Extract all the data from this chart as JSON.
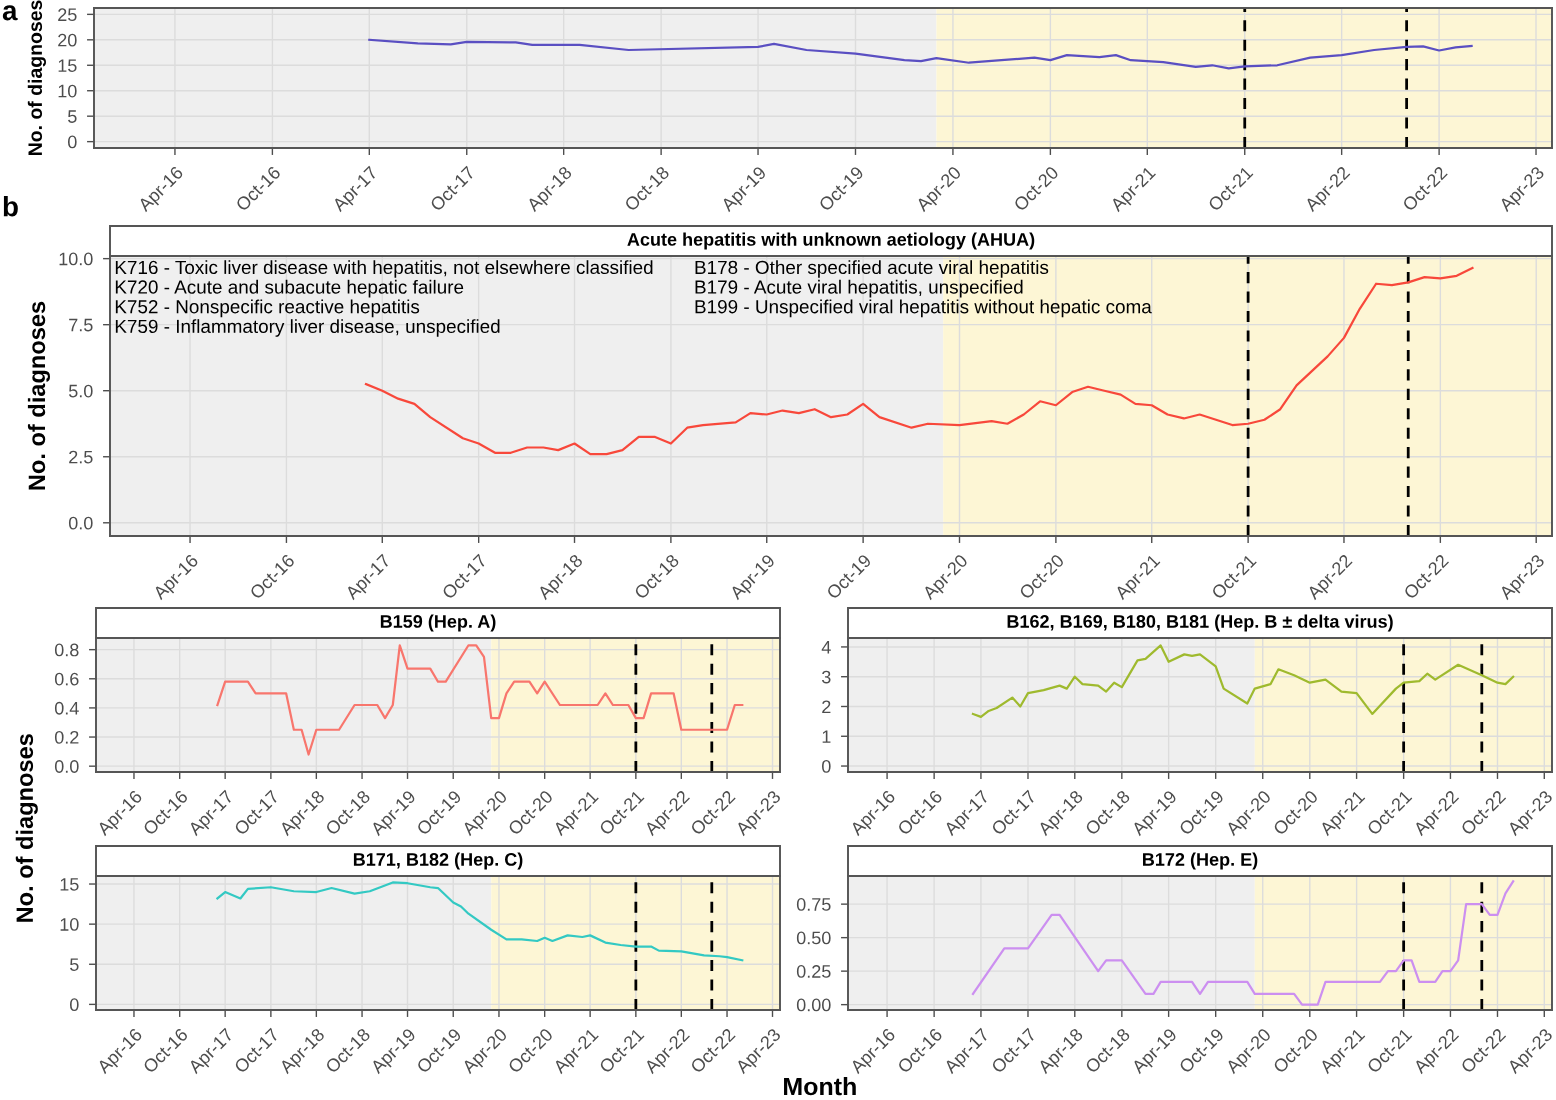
{
  "chart_data": [
    {
      "type": "line",
      "ylabel": "No. of diagnoses",
      "annotations": [
        "a"
      ],
      "grid": true,
      "line_style": "solid",
      "xlim": [
        "2015-11-01",
        "2023-05-01"
      ],
      "ylim": [
        -1.25,
        26.25
      ],
      "yticks": [
        0,
        5,
        10,
        15,
        20,
        25
      ],
      "xticks": [
        {
          "value": "2016-04-01",
          "label": "Apr-16"
        },
        {
          "value": "2016-10-01",
          "label": "Oct-16"
        },
        {
          "value": "2017-04-01",
          "label": "Apr-17"
        },
        {
          "value": "2017-10-01",
          "label": "Oct-17"
        },
        {
          "value": "2018-04-01",
          "label": "Apr-18"
        },
        {
          "value": "2018-10-01",
          "label": "Oct-18"
        },
        {
          "value": "2019-04-01",
          "label": "Apr-19"
        },
        {
          "value": "2019-10-01",
          "label": "Oct-19"
        },
        {
          "value": "2020-04-01",
          "label": "Apr-20"
        },
        {
          "value": "2020-10-01",
          "label": "Oct-20"
        },
        {
          "value": "2021-04-01",
          "label": "Apr-21"
        },
        {
          "value": "2021-10-01",
          "label": "Oct-21"
        },
        {
          "value": "2022-04-01",
          "label": "Apr-22"
        },
        {
          "value": "2022-10-01",
          "label": "Oct-22"
        },
        {
          "value": "2023-04-01",
          "label": "Apr-23"
        }
      ],
      "bands": [
        {
          "axis": "x",
          "from": "2015-11-01",
          "to": "2020-03-01",
          "color": "#efefef"
        },
        {
          "axis": "x",
          "from": "2020-03-01",
          "to": "2023-05-01",
          "color": "#fdf6d5"
        }
      ],
      "ref_lines": [
        {
          "axis": "x",
          "value": "2021-10-01",
          "color": "#000000",
          "line_style": "dashed"
        },
        {
          "axis": "x",
          "value": "2022-08-01",
          "color": "#000000",
          "line_style": "dashed"
        }
      ],
      "series": [
        {
          "color": "#5a4fc2",
          "x": [
            "2017-04",
            "2017-07",
            "2017-09",
            "2017-10",
            "2018-01",
            "2018-02",
            "2018-05",
            "2018-08",
            "2019-04",
            "2019-05",
            "2019-07",
            "2019-10",
            "2020-01",
            "2020-02",
            "2020-03",
            "2020-05",
            "2020-07",
            "2020-09",
            "2020-10",
            "2020-11",
            "2021-01",
            "2021-02",
            "2021-03",
            "2021-05",
            "2021-07",
            "2021-08",
            "2021-09",
            "2021-10",
            "2021-12",
            "2022-02",
            "2022-04",
            "2022-06",
            "2022-08",
            "2022-09",
            "2022-10",
            "2022-11",
            "2022-12"
          ],
          "values": [
            20.0,
            19.3,
            19.1,
            19.6,
            19.5,
            19.0,
            19.0,
            18.0,
            18.6,
            19.2,
            18.0,
            17.3,
            16.0,
            15.8,
            16.4,
            15.5,
            16.0,
            16.5,
            16.0,
            17.0,
            16.6,
            17.0,
            16.0,
            15.6,
            14.7,
            15.0,
            14.4,
            14.8,
            15.0,
            16.5,
            17.0,
            18.0,
            18.6,
            18.7,
            17.9,
            18.5,
            18.8
          ]
        }
      ]
    },
    {
      "type": "line",
      "title": "Acute hepatitis with unknown aetiology (AHUA)",
      "ylabel": "No. of diagnoses",
      "grid": true,
      "line_style": "solid",
      "annotations": [
        "b",
        "K716 - Toxic liver disease with hepatitis, not elsewhere classified\nK720 - Acute and subacute hepatic failure\nK752 - Nonspecific reactive hepatitis\nK759 - Inflammatory liver disease, unspecified",
        "B178 - Other specified acute viral hepatitis\nB179 - Acute viral hepatitis, unspecified\nB199 - Unspecified viral hepatitis without hepatic coma"
      ],
      "xlim": [
        "2015-11-01",
        "2023-05-01"
      ],
      "ylim": [
        -0.5,
        10.1
      ],
      "yticks": [
        {
          "value": 0,
          "label": "0.0"
        },
        {
          "value": 2.5,
          "label": "2.5"
        },
        {
          "value": 5,
          "label": "5.0"
        },
        {
          "value": 7.5,
          "label": "7.5"
        },
        {
          "value": 10,
          "label": "10.0"
        }
      ],
      "xticks": [
        {
          "value": "2016-04-01",
          "label": "Apr-16"
        },
        {
          "value": "2016-10-01",
          "label": "Oct-16"
        },
        {
          "value": "2017-04-01",
          "label": "Apr-17"
        },
        {
          "value": "2017-10-01",
          "label": "Oct-17"
        },
        {
          "value": "2018-04-01",
          "label": "Apr-18"
        },
        {
          "value": "2018-10-01",
          "label": "Oct-18"
        },
        {
          "value": "2019-04-01",
          "label": "Apr-19"
        },
        {
          "value": "2019-10-01",
          "label": "Oct-19"
        },
        {
          "value": "2020-04-01",
          "label": "Apr-20"
        },
        {
          "value": "2020-10-01",
          "label": "Oct-20"
        },
        {
          "value": "2021-04-01",
          "label": "Apr-21"
        },
        {
          "value": "2021-10-01",
          "label": "Oct-21"
        },
        {
          "value": "2022-04-01",
          "label": "Apr-22"
        },
        {
          "value": "2022-10-01",
          "label": "Oct-22"
        },
        {
          "value": "2023-04-01",
          "label": "Apr-23"
        }
      ],
      "bands": [
        {
          "axis": "x",
          "from": "2015-11-01",
          "to": "2020-03-01",
          "color": "#efefef"
        },
        {
          "axis": "x",
          "from": "2020-03-01",
          "to": "2023-05-01",
          "color": "#fdf6d5"
        }
      ],
      "ref_lines": [
        {
          "axis": "x",
          "value": "2021-10-01",
          "color": "#000000",
          "line_style": "dashed"
        },
        {
          "axis": "x",
          "value": "2022-08-01",
          "color": "#000000",
          "line_style": "dashed"
        }
      ],
      "series": [
        {
          "color": "#f8483b",
          "x": [
            "2017-03",
            "2017-04",
            "2017-05",
            "2017-06",
            "2017-07",
            "2017-09",
            "2017-10",
            "2017-11",
            "2017-12",
            "2018-01",
            "2018-02",
            "2018-03",
            "2018-04",
            "2018-05",
            "2018-06",
            "2018-07",
            "2018-08",
            "2018-09",
            "2018-10",
            "2018-11",
            "2018-12",
            "2019-02",
            "2019-03",
            "2019-04",
            "2019-05",
            "2019-06",
            "2019-07",
            "2019-08",
            "2019-09",
            "2019-10",
            "2019-11",
            "2020-01",
            "2020-02",
            "2020-04",
            "2020-06",
            "2020-07",
            "2020-08",
            "2020-09",
            "2020-10",
            "2020-11",
            "2020-12",
            "2021-01",
            "2021-02",
            "2021-03",
            "2021-04",
            "2021-05",
            "2021-06",
            "2021-07",
            "2021-09",
            "2021-10",
            "2021-11",
            "2021-12",
            "2022-01",
            "2022-03",
            "2022-04",
            "2022-05",
            "2022-06",
            "2022-07",
            "2022-08",
            "2022-09",
            "2022-10",
            "2022-11",
            "2022-12"
          ],
          "values": [
            5.25,
            5.0,
            4.7,
            4.5,
            4.0,
            3.2,
            3.0,
            2.65,
            2.65,
            2.85,
            2.85,
            2.75,
            3.0,
            2.6,
            2.6,
            2.75,
            3.25,
            3.25,
            3.0,
            3.6,
            3.7,
            3.8,
            4.15,
            4.1,
            4.25,
            4.15,
            4.3,
            4.0,
            4.1,
            4.5,
            4.0,
            3.6,
            3.75,
            3.7,
            3.85,
            3.75,
            4.1,
            4.6,
            4.45,
            4.95,
            5.15,
            5.0,
            4.85,
            4.5,
            4.45,
            4.1,
            3.95,
            4.1,
            3.7,
            3.75,
            3.9,
            4.3,
            5.2,
            6.3,
            7.0,
            8.1,
            9.05,
            9.0,
            9.1,
            9.3,
            9.25,
            9.35,
            9.65
          ]
        }
      ]
    },
    {
      "type": "line",
      "title": "B159 (Hep. A)",
      "ylabel": "No. of diagnoses",
      "grid": true,
      "line_style": "solid",
      "xlim": [
        "2015-11-01",
        "2023-05-01"
      ],
      "ylim": [
        -0.04,
        0.88
      ],
      "yticks": [
        {
          "value": 0,
          "label": "0.0"
        },
        {
          "value": 0.2,
          "label": "0.2"
        },
        {
          "value": 0.4,
          "label": "0.4"
        },
        {
          "value": 0.6,
          "label": "0.6"
        },
        {
          "value": 0.8,
          "label": "0.8"
        }
      ],
      "xticks": [
        {
          "value": "2016-04-01",
          "label": "Apr-16"
        },
        {
          "value": "2016-10-01",
          "label": "Oct-16"
        },
        {
          "value": "2017-04-01",
          "label": "Apr-17"
        },
        {
          "value": "2017-10-01",
          "label": "Oct-17"
        },
        {
          "value": "2018-04-01",
          "label": "Apr-18"
        },
        {
          "value": "2018-10-01",
          "label": "Oct-18"
        },
        {
          "value": "2019-04-01",
          "label": "Apr-19"
        },
        {
          "value": "2019-10-01",
          "label": "Oct-19"
        },
        {
          "value": "2020-04-01",
          "label": "Apr-20"
        },
        {
          "value": "2020-10-01",
          "label": "Oct-20"
        },
        {
          "value": "2021-04-01",
          "label": "Apr-21"
        },
        {
          "value": "2021-10-01",
          "label": "Oct-21"
        },
        {
          "value": "2022-04-01",
          "label": "Apr-22"
        },
        {
          "value": "2022-10-01",
          "label": "Oct-22"
        },
        {
          "value": "2023-04-01",
          "label": "Apr-23"
        }
      ],
      "bands": [
        {
          "axis": "x",
          "from": "2015-11-01",
          "to": "2020-03-01",
          "color": "#efefef"
        },
        {
          "axis": "x",
          "from": "2020-03-01",
          "to": "2023-05-01",
          "color": "#fdf6d5"
        }
      ],
      "ref_lines": [
        {
          "axis": "x",
          "value": "2021-10-01",
          "color": "#000000",
          "line_style": "dashed"
        },
        {
          "axis": "x",
          "value": "2022-08-01",
          "color": "#000000",
          "line_style": "dashed"
        }
      ],
      "series": [
        {
          "color": "#f8766d",
          "x": [
            "2017-03",
            "2017-04",
            "2017-07",
            "2017-08",
            "2017-12",
            "2018-01",
            "2018-02",
            "2018-03",
            "2018-04",
            "2018-07",
            "2018-09",
            "2018-12",
            "2019-01",
            "2019-02",
            "2019-03",
            "2019-04",
            "2019-07",
            "2019-08",
            "2019-09",
            "2019-12",
            "2020-01",
            "2020-02",
            "2020-03",
            "2020-04",
            "2020-05",
            "2020-06",
            "2020-08",
            "2020-09",
            "2020-10",
            "2020-12",
            "2021-05",
            "2021-06",
            "2021-07",
            "2021-09",
            "2021-10",
            "2021-11",
            "2021-12",
            "2022-03",
            "2022-04",
            "2022-09",
            "2022-10",
            "2022-11",
            "2022-12"
          ],
          "values": [
            0.42,
            0.58,
            0.58,
            0.5,
            0.5,
            0.25,
            0.25,
            0.08,
            0.25,
            0.25,
            0.42,
            0.42,
            0.33,
            0.42,
            0.83,
            0.67,
            0.67,
            0.58,
            0.58,
            0.83,
            0.83,
            0.75,
            0.33,
            0.33,
            0.5,
            0.58,
            0.58,
            0.5,
            0.58,
            0.42,
            0.42,
            0.5,
            0.42,
            0.42,
            0.33,
            0.33,
            0.5,
            0.5,
            0.25,
            0.25,
            0.25,
            0.42,
            0.42
          ]
        }
      ]
    },
    {
      "type": "line",
      "title": "B162, B169, B180, B181 (Hep. B ± delta virus)",
      "grid": true,
      "line_style": "solid",
      "xlim": [
        "2015-11-01",
        "2023-05-01"
      ],
      "ylim": [
        -0.2,
        4.3
      ],
      "yticks": [
        0,
        1,
        2,
        3,
        4
      ],
      "xticks": [
        {
          "value": "2016-04-01",
          "label": "Apr-16"
        },
        {
          "value": "2016-10-01",
          "label": "Oct-16"
        },
        {
          "value": "2017-04-01",
          "label": "Apr-17"
        },
        {
          "value": "2017-10-01",
          "label": "Oct-17"
        },
        {
          "value": "2018-04-01",
          "label": "Apr-18"
        },
        {
          "value": "2018-10-01",
          "label": "Oct-18"
        },
        {
          "value": "2019-04-01",
          "label": "Apr-19"
        },
        {
          "value": "2019-10-01",
          "label": "Oct-19"
        },
        {
          "value": "2020-04-01",
          "label": "Apr-20"
        },
        {
          "value": "2020-10-01",
          "label": "Oct-20"
        },
        {
          "value": "2021-04-01",
          "label": "Apr-21"
        },
        {
          "value": "2021-10-01",
          "label": "Oct-21"
        },
        {
          "value": "2022-04-01",
          "label": "Apr-22"
        },
        {
          "value": "2022-10-01",
          "label": "Oct-22"
        },
        {
          "value": "2023-04-01",
          "label": "Apr-23"
        }
      ],
      "bands": [
        {
          "axis": "x",
          "from": "2015-11-01",
          "to": "2020-03-01",
          "color": "#efefef"
        },
        {
          "axis": "x",
          "from": "2020-03-01",
          "to": "2023-05-01",
          "color": "#fdf6d5"
        }
      ],
      "ref_lines": [
        {
          "axis": "x",
          "value": "2021-10-01",
          "color": "#000000",
          "line_style": "dashed"
        },
        {
          "axis": "x",
          "value": "2022-08-01",
          "color": "#000000",
          "line_style": "dashed"
        }
      ],
      "series": [
        {
          "color": "#9fba2e",
          "x": [
            "2017-03",
            "2017-04",
            "2017-05",
            "2017-06",
            "2017-08",
            "2017-09",
            "2017-10",
            "2017-12",
            "2018-02",
            "2018-03",
            "2018-04",
            "2018-05",
            "2018-07",
            "2018-08",
            "2018-09",
            "2018-10",
            "2018-12",
            "2019-01",
            "2019-03",
            "2019-04",
            "2019-06",
            "2019-07",
            "2019-08",
            "2019-10",
            "2019-11",
            "2020-02",
            "2020-03",
            "2020-05",
            "2020-06",
            "2020-08",
            "2020-10",
            "2020-12",
            "2021-02",
            "2021-04",
            "2021-06",
            "2021-09",
            "2021-10",
            "2021-12",
            "2022-01",
            "2022-02",
            "2022-05",
            "2022-08",
            "2022-10",
            "2022-11",
            "2022-12"
          ],
          "values": [
            1.75,
            1.65,
            1.85,
            1.95,
            2.3,
            2.0,
            2.45,
            2.55,
            2.7,
            2.6,
            3.0,
            2.75,
            2.7,
            2.5,
            2.8,
            2.65,
            3.55,
            3.6,
            4.05,
            3.5,
            3.75,
            3.7,
            3.75,
            3.35,
            2.6,
            2.1,
            2.6,
            2.75,
            3.25,
            3.05,
            2.8,
            2.9,
            2.5,
            2.45,
            1.75,
            2.6,
            2.8,
            2.85,
            3.1,
            2.9,
            3.4,
            3.05,
            2.8,
            2.75,
            3.0
          ]
        }
      ]
    },
    {
      "type": "line",
      "title": "B171, B182 (Hep. C)",
      "grid": true,
      "line_style": "solid",
      "xlim": [
        "2015-11-01",
        "2023-05-01"
      ],
      "ylim": [
        -0.7,
        16
      ],
      "yticks": [
        0,
        5,
        10,
        15
      ],
      "xticks": [
        {
          "value": "2016-04-01",
          "label": "Apr-16"
        },
        {
          "value": "2016-10-01",
          "label": "Oct-16"
        },
        {
          "value": "2017-04-01",
          "label": "Apr-17"
        },
        {
          "value": "2017-10-01",
          "label": "Oct-17"
        },
        {
          "value": "2018-04-01",
          "label": "Apr-18"
        },
        {
          "value": "2018-10-01",
          "label": "Oct-18"
        },
        {
          "value": "2019-04-01",
          "label": "Apr-19"
        },
        {
          "value": "2019-10-01",
          "label": "Oct-19"
        },
        {
          "value": "2020-04-01",
          "label": "Apr-20"
        },
        {
          "value": "2020-10-01",
          "label": "Oct-20"
        },
        {
          "value": "2021-04-01",
          "label": "Apr-21"
        },
        {
          "value": "2021-10-01",
          "label": "Oct-21"
        },
        {
          "value": "2022-04-01",
          "label": "Apr-22"
        },
        {
          "value": "2022-10-01",
          "label": "Oct-22"
        },
        {
          "value": "2023-04-01",
          "label": "Apr-23"
        }
      ],
      "bands": [
        {
          "axis": "x",
          "from": "2015-11-01",
          "to": "2020-03-01",
          "color": "#efefef"
        },
        {
          "axis": "x",
          "from": "2020-03-01",
          "to": "2023-05-01",
          "color": "#fdf6d5"
        }
      ],
      "ref_lines": [
        {
          "axis": "x",
          "value": "2021-10-01",
          "color": "#000000",
          "line_style": "dashed"
        },
        {
          "axis": "x",
          "value": "2022-08-01",
          "color": "#000000",
          "line_style": "dashed"
        }
      ],
      "series": [
        {
          "color": "#33c9c3",
          "x": [
            "2017-03",
            "2017-04",
            "2017-06",
            "2017-07",
            "2017-10",
            "2018-01",
            "2018-04",
            "2018-06",
            "2018-09",
            "2018-11",
            "2019-02",
            "2019-04",
            "2019-07",
            "2019-08",
            "2019-10",
            "2019-11",
            "2019-12",
            "2020-03",
            "2020-05",
            "2020-07",
            "2020-09",
            "2020-10",
            "2020-11",
            "2021-01",
            "2021-03",
            "2021-04",
            "2021-06",
            "2021-08",
            "2021-10",
            "2021-12",
            "2022-01",
            "2022-04",
            "2022-07",
            "2022-09",
            "2022-10",
            "2022-12"
          ],
          "values": [
            13.2,
            14.0,
            13.2,
            14.4,
            14.6,
            14.1,
            14.0,
            14.5,
            13.8,
            14.1,
            15.2,
            15.1,
            14.6,
            14.5,
            12.7,
            12.2,
            11.3,
            9.3,
            8.1,
            8.1,
            7.9,
            8.3,
            7.9,
            8.6,
            8.4,
            8.6,
            7.7,
            7.4,
            7.2,
            7.2,
            6.7,
            6.6,
            6.1,
            6.0,
            5.9,
            5.5
          ]
        }
      ]
    },
    {
      "type": "line",
      "title": "B172 (Hep. E)",
      "xlabel": "Month",
      "grid": true,
      "line_style": "solid",
      "xlim": [
        "2015-11-01",
        "2023-05-01"
      ],
      "ylim": [
        -0.04,
        0.96
      ],
      "yticks": [
        {
          "value": 0,
          "label": "0.00"
        },
        {
          "value": 0.25,
          "label": "0.25"
        },
        {
          "value": 0.5,
          "label": "0.50"
        },
        {
          "value": 0.75,
          "label": "0.75"
        }
      ],
      "xticks": [
        {
          "value": "2016-04-01",
          "label": "Apr-16"
        },
        {
          "value": "2016-10-01",
          "label": "Oct-16"
        },
        {
          "value": "2017-04-01",
          "label": "Apr-17"
        },
        {
          "value": "2017-10-01",
          "label": "Oct-17"
        },
        {
          "value": "2018-04-01",
          "label": "Apr-18"
        },
        {
          "value": "2018-10-01",
          "label": "Oct-18"
        },
        {
          "value": "2019-04-01",
          "label": "Apr-19"
        },
        {
          "value": "2019-10-01",
          "label": "Oct-19"
        },
        {
          "value": "2020-04-01",
          "label": "Apr-20"
        },
        {
          "value": "2020-10-01",
          "label": "Oct-20"
        },
        {
          "value": "2021-04-01",
          "label": "Apr-21"
        },
        {
          "value": "2021-10-01",
          "label": "Oct-21"
        },
        {
          "value": "2022-04-01",
          "label": "Apr-22"
        },
        {
          "value": "2022-10-01",
          "label": "Oct-22"
        },
        {
          "value": "2023-04-01",
          "label": "Apr-23"
        }
      ],
      "bands": [
        {
          "axis": "x",
          "from": "2015-11-01",
          "to": "2020-03-01",
          "color": "#efefef"
        },
        {
          "axis": "x",
          "from": "2020-03-01",
          "to": "2023-05-01",
          "color": "#fdf6d5"
        }
      ],
      "ref_lines": [
        {
          "axis": "x",
          "value": "2021-10-01",
          "color": "#000000",
          "line_style": "dashed"
        },
        {
          "axis": "x",
          "value": "2022-08-01",
          "color": "#000000",
          "line_style": "dashed"
        }
      ],
      "series": [
        {
          "color": "#cc8ff0",
          "x": [
            "2017-03",
            "2017-07",
            "2017-10",
            "2018-01",
            "2018-02",
            "2018-07",
            "2018-08",
            "2018-10",
            "2019-01",
            "2019-02",
            "2019-03",
            "2019-07",
            "2019-08",
            "2019-09",
            "2020-02",
            "2020-03",
            "2020-08",
            "2020-09",
            "2020-11",
            "2020-12",
            "2021-07",
            "2021-08",
            "2021-09",
            "2021-10",
            "2021-11",
            "2021-12",
            "2022-02",
            "2022-03",
            "2022-04",
            "2022-05",
            "2022-06",
            "2022-08",
            "2022-09",
            "2022-10",
            "2022-11",
            "2022-12"
          ],
          "values": [
            0.08,
            0.42,
            0.42,
            0.67,
            0.67,
            0.25,
            0.33,
            0.33,
            0.08,
            0.08,
            0.17,
            0.17,
            0.08,
            0.17,
            0.17,
            0.08,
            0.08,
            0.0,
            0.0,
            0.17,
            0.17,
            0.25,
            0.25,
            0.33,
            0.33,
            0.17,
            0.17,
            0.25,
            0.25,
            0.33,
            0.75,
            0.75,
            0.67,
            0.67,
            0.83,
            0.92
          ]
        }
      ]
    }
  ]
}
